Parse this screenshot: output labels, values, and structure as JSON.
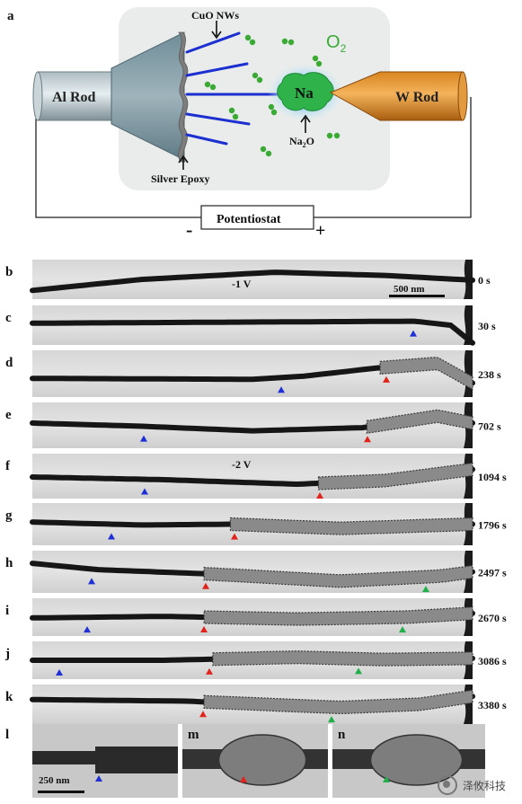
{
  "panel_a": {
    "label": "a",
    "cuo_label": "CuO NWs",
    "o2_main": "O",
    "o2_sub": "2",
    "al_rod": "Al Rod",
    "w_rod": "W Rod",
    "na": "Na",
    "na2o_main": "Na",
    "na2o_sub": "2",
    "na2o_end": "O",
    "silver_epoxy": "Silver Epoxy",
    "potentiostat": "Potentiostat",
    "minus": "-",
    "plus": "+"
  },
  "strips": [
    {
      "label": "b",
      "time": "0 s"
    },
    {
      "label": "c",
      "time": "30 s"
    },
    {
      "label": "d",
      "time": "238 s"
    },
    {
      "label": "e",
      "time": "702 s"
    },
    {
      "label": "f",
      "time": "1094 s"
    },
    {
      "label": "g",
      "time": "1796 s"
    },
    {
      "label": "h",
      "time": "2497 s"
    },
    {
      "label": "i",
      "time": "2670 s"
    },
    {
      "label": "j",
      "time": "3086 s"
    },
    {
      "label": "k",
      "time": "3380 s"
    }
  ],
  "voltage_b": "-1 V",
  "voltage_f": "-2 V",
  "scalebar_main": "500 nm",
  "bottom": [
    {
      "label": "l"
    },
    {
      "label": "m"
    },
    {
      "label": "n"
    }
  ],
  "scalebar_l": "250 nm",
  "watermark": "泽攸科技",
  "colors": {
    "arrow_blue": "#1e2fd6",
    "arrow_red": "#e0231b",
    "arrow_green": "#20b04a",
    "o2_green": "#3aaa35"
  }
}
